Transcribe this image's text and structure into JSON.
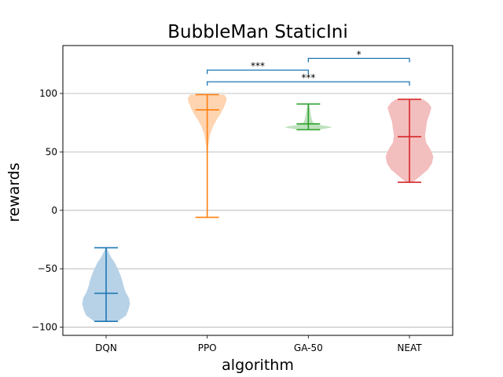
{
  "chart_data": {
    "type": "violin",
    "title": "BubbleMan StaticIni",
    "xlabel": "algorithm",
    "ylabel": "rewards",
    "ylim": [
      -107,
      141
    ],
    "yticks": [
      -100,
      -50,
      0,
      50,
      100
    ],
    "ytick_labels": [
      "−100",
      "−50",
      "0",
      "50",
      "100"
    ],
    "grid": "y",
    "categories": [
      "DQN",
      "PPO",
      "GA-50",
      "NEAT"
    ],
    "series": [
      {
        "category": "DQN",
        "color": "#1f77b4",
        "fill": "#b7d2e7",
        "min": -95,
        "max": -32,
        "median": -71,
        "density": [
          [
            -95,
            0.24
          ],
          [
            -90,
            0.41
          ],
          [
            -85,
            0.46
          ],
          [
            -80,
            0.49
          ],
          [
            -75,
            0.47
          ],
          [
            -70,
            0.4
          ],
          [
            -65,
            0.36
          ],
          [
            -60,
            0.33
          ],
          [
            -55,
            0.29
          ],
          [
            -50,
            0.24
          ],
          [
            -45,
            0.18
          ],
          [
            -40,
            0.1
          ],
          [
            -35,
            0.04
          ],
          [
            -32,
            0.01
          ]
        ]
      },
      {
        "category": "PPO",
        "color": "#ff7f0e",
        "fill": "#fed4b1",
        "min": -6,
        "max": 99,
        "median": 86,
        "density": [
          [
            -6,
            0.0
          ],
          [
            40,
            0.0
          ],
          [
            55,
            0.02
          ],
          [
            65,
            0.06
          ],
          [
            72,
            0.12
          ],
          [
            78,
            0.2
          ],
          [
            83,
            0.28
          ],
          [
            88,
            0.34
          ],
          [
            92,
            0.38
          ],
          [
            96,
            0.4
          ],
          [
            99,
            0.35
          ]
        ]
      },
      {
        "category": "GA-50",
        "color": "#2ca02c",
        "fill": "#bfe2be",
        "min": 69,
        "max": 91,
        "median": 74,
        "density": [
          [
            69,
            0.2
          ],
          [
            70,
            0.36
          ],
          [
            71,
            0.49
          ],
          [
            72,
            0.41
          ],
          [
            73,
            0.24
          ],
          [
            75,
            0.1
          ],
          [
            78,
            0.07
          ],
          [
            82,
            0.05
          ],
          [
            86,
            0.04
          ],
          [
            89,
            0.02
          ],
          [
            91,
            0.01
          ]
        ]
      },
      {
        "category": "NEAT",
        "color": "#d62728",
        "fill": "#f3bebe",
        "min": 24,
        "max": 95,
        "median": 63,
        "density": [
          [
            24,
            0.07
          ],
          [
            30,
            0.24
          ],
          [
            35,
            0.38
          ],
          [
            40,
            0.46
          ],
          [
            46,
            0.49
          ],
          [
            52,
            0.43
          ],
          [
            58,
            0.34
          ],
          [
            64,
            0.32
          ],
          [
            70,
            0.34
          ],
          [
            76,
            0.36
          ],
          [
            82,
            0.41
          ],
          [
            88,
            0.45
          ],
          [
            92,
            0.38
          ],
          [
            95,
            0.28
          ]
        ]
      }
    ],
    "annotations": [
      {
        "from": "PPO",
        "to": "GA-50",
        "y": 120,
        "label": "***"
      },
      {
        "from": "GA-50",
        "to": "NEAT",
        "y": 130,
        "label": "*"
      },
      {
        "from": "PPO",
        "to": "NEAT",
        "y": 110,
        "label": "***"
      }
    ],
    "bracket_color": "#1f77b4"
  }
}
